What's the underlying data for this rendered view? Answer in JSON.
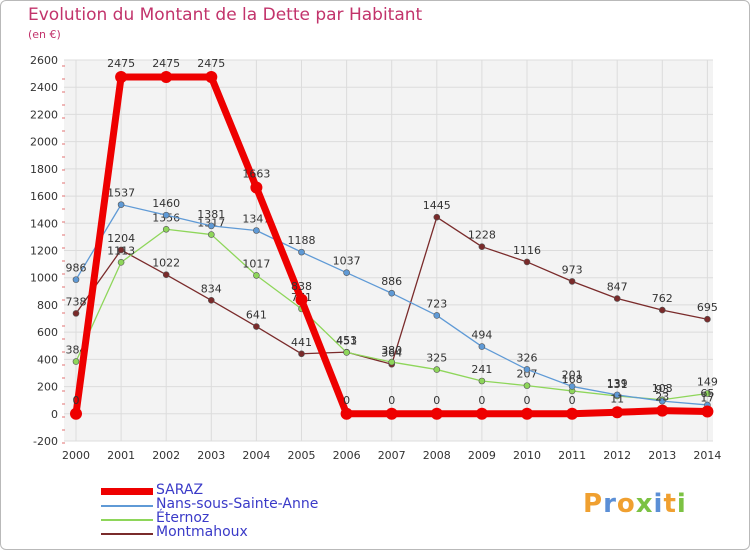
{
  "header": {
    "title": "Evolution du Montant de la Dette par Habitant",
    "unit": "(en €)"
  },
  "logo": {
    "letters": [
      "P",
      "r",
      "o",
      "x",
      "i",
      "t",
      "i"
    ],
    "colors": [
      "#f0a030",
      "#5b8fd6",
      "#f0a030",
      "#7cc243",
      "#5b8fd6",
      "#f0a030",
      "#7cc243"
    ]
  },
  "chart_data": {
    "type": "line",
    "title": "Evolution du Montant de la Dette par Habitant",
    "ylabel": "(en €)",
    "xlabel": "",
    "ylim": [
      -200,
      2600
    ],
    "yticks": [
      -200,
      0,
      200,
      400,
      600,
      800,
      1000,
      1200,
      1400,
      1600,
      1800,
      2000,
      2200,
      2400,
      2600
    ],
    "grid": true,
    "legend_position": "bottom-left",
    "categories": [
      "2000",
      "2001",
      "2002",
      "2003",
      "2004",
      "2005",
      "2006",
      "2007",
      "2008",
      "2009",
      "2010",
      "2011",
      "2012",
      "2013",
      "2014"
    ],
    "series": [
      {
        "name": "Montmahoux",
        "color": "#7a2b2b",
        "values": [
          738,
          1204,
          1022,
          834,
          641,
          441,
          453,
          364,
          1445,
          1228,
          1116,
          973,
          847,
          762,
          695
        ],
        "labels": [
          "738",
          "1204",
          "1022",
          "834",
          "641",
          "441",
          "453",
          "364",
          "1445",
          "1228",
          "1116",
          "973",
          "847",
          "762",
          "695"
        ]
      },
      {
        "name": "Éternoz",
        "color": "#8ed65a",
        "values": [
          384,
          1113,
          1356,
          1317,
          1017,
          771,
          451,
          380,
          325,
          241,
          207,
          168,
          131,
          103,
          149
        ],
        "labels": [
          "384",
          "1113",
          "1356",
          "1317",
          "1017",
          "771",
          "451",
          "380",
          "325",
          "241",
          "207",
          "168",
          "131",
          "103",
          "149"
        ]
      },
      {
        "name": "Nans-sous-Sainte-Anne",
        "color": "#5f9ad6",
        "values": [
          986,
          1537,
          1460,
          1381,
          1347,
          1188,
          1037,
          886,
          723,
          494,
          326,
          201,
          139,
          93,
          65
        ],
        "labels": [
          "986",
          "1537",
          "1460",
          "1381",
          "1347",
          "1188",
          "1037",
          "886",
          "723",
          "494",
          "326",
          "201",
          "139",
          "93",
          "65"
        ]
      },
      {
        "name": "SARAZ",
        "color": "#ee0000",
        "values": [
          0,
          2475,
          2475,
          2475,
          1663,
          838,
          0,
          0,
          0,
          0,
          0,
          0,
          11,
          23,
          17
        ],
        "labels": [
          "0",
          "2475",
          "2475",
          "2475",
          "1663",
          "838",
          "0",
          "0",
          "0",
          "0",
          "0",
          "0",
          "11",
          "23",
          "17"
        ]
      }
    ],
    "legend": [
      "SARAZ",
      "Nans-sous-Sainte-Anne",
      "Éternoz",
      "Montmahoux"
    ]
  }
}
